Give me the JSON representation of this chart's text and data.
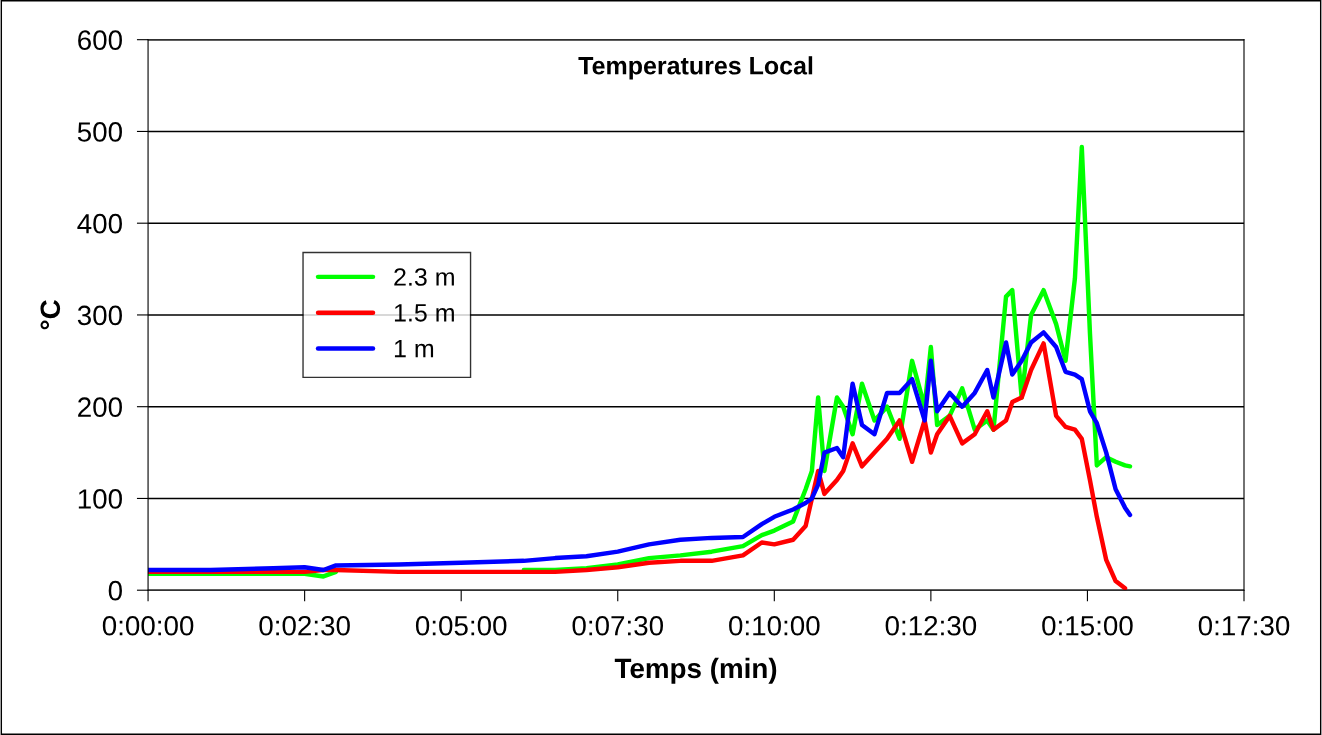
{
  "chart_data": {
    "type": "line",
    "title": "Temperatures Local",
    "xlabel": "Temps (min)",
    "ylabel": "°C",
    "x": [
      0,
      0.01667,
      0.03333,
      0.04167,
      0.04667,
      0.05,
      0.06667,
      0.08333,
      0.1,
      0.10833,
      0.11667,
      0.125,
      0.13333,
      0.14167,
      0.15,
      0.15833,
      0.16333,
      0.16667,
      0.17167,
      0.175,
      0.17667,
      0.17833,
      0.18,
      0.18333,
      0.185,
      0.1875,
      0.19,
      0.19333,
      0.19667,
      0.2,
      0.20333,
      0.20667,
      0.20833,
      0.21,
      0.21333,
      0.21667,
      0.22,
      0.22333,
      0.225,
      0.22833,
      0.23,
      0.2325,
      0.235,
      0.23833,
      0.24167,
      0.24417,
      0.24667,
      0.2485,
      0.25067,
      0.2525,
      0.255,
      0.2575,
      0.26,
      0.26133
    ],
    "series": [
      {
        "name": "2.3 m",
        "color": "#00ff00",
        "values": [
          18,
          18,
          18,
          18,
          15,
          20,
          null,
          null,
          22,
          22,
          24,
          28,
          35,
          38,
          42,
          48,
          60,
          65,
          75,
          110,
          130,
          210,
          130,
          210,
          200,
          170,
          225,
          185,
          200,
          165,
          250,
          200,
          265,
          180,
          190,
          220,
          175,
          185,
          175,
          320,
          327,
          210,
          300,
          327,
          290,
          250,
          340,
          483,
          280,
          136,
          145,
          140,
          136,
          135
        ]
      },
      {
        "name": "1.5 m",
        "color": "#ff0000",
        "values": [
          20,
          20,
          20,
          20,
          22,
          22,
          20,
          20,
          20,
          20,
          22,
          25,
          30,
          32,
          32,
          38,
          52,
          50,
          55,
          70,
          100,
          130,
          105,
          120,
          130,
          160,
          135,
          150,
          165,
          185,
          140,
          185,
          150,
          170,
          190,
          160,
          170,
          195,
          175,
          185,
          205,
          210,
          240,
          269,
          190,
          178,
          175,
          165,
          120,
          80,
          33,
          10,
          2,
          null
        ]
      },
      {
        "name": "1 m",
        "color": "#0000ff",
        "values": [
          22,
          22,
          24,
          25,
          22,
          27,
          28,
          30,
          32,
          35,
          37,
          42,
          50,
          55,
          57,
          58,
          72,
          80,
          88,
          95,
          100,
          115,
          150,
          155,
          145,
          225,
          180,
          170,
          215,
          215,
          230,
          185,
          250,
          195,
          215,
          200,
          215,
          240,
          210,
          270,
          235,
          250,
          270,
          281,
          265,
          238,
          235,
          230,
          195,
          182,
          150,
          110,
          90,
          82
        ]
      }
    ],
    "xlim": [
      0,
      0.291667
    ],
    "xticks": [
      {
        "value": 0,
        "label": "0:00:00"
      },
      {
        "value": 0.041667,
        "label": "0:02:30"
      },
      {
        "value": 0.083333,
        "label": "0:05:00"
      },
      {
        "value": 0.125,
        "label": "0:07:30"
      },
      {
        "value": 0.166667,
        "label": "0:10:00"
      },
      {
        "value": 0.208333,
        "label": "0:12:30"
      },
      {
        "value": 0.25,
        "label": "0:15:00"
      },
      {
        "value": 0.291667,
        "label": "0:17:30"
      }
    ],
    "ylim": [
      0,
      600
    ],
    "yticks": [
      0,
      100,
      200,
      300,
      400,
      500,
      600
    ],
    "grid": "y",
    "legend": "center left",
    "marker": "none",
    "line_style": "solid"
  }
}
